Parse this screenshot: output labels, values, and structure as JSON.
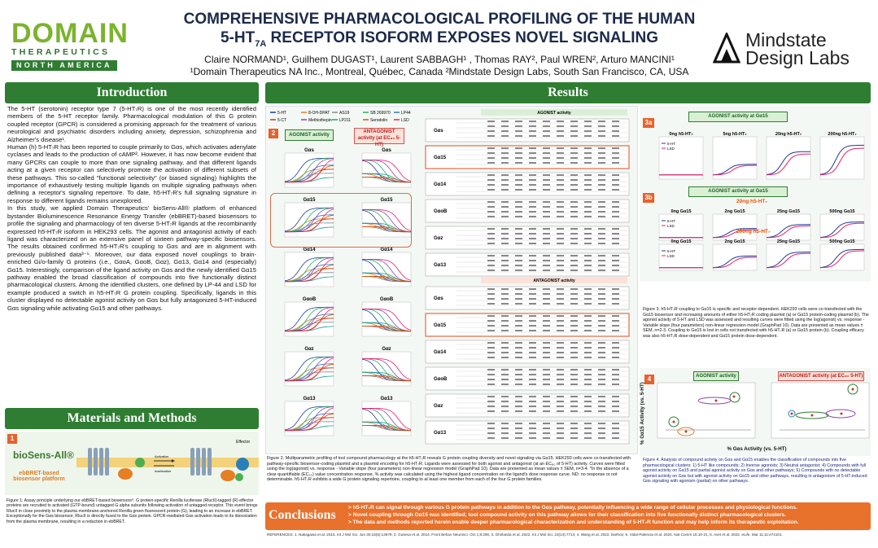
{
  "header": {
    "title_line1": "COMPREHENSIVE PHARMACOLOGICAL PROFILING OF THE HUMAN",
    "title_line2_pre": "5-HT",
    "title_line2_sub": "7A",
    "title_line2_post": " RECEPTOR ISOFORM EXPOSES NOVEL SIGNALING",
    "authors": "Claire NORMAND¹, Guilhem DUGAST¹, Laurent SABBAGH¹ , Thomas RAY², Paul WREN², Arturo MANCINI¹",
    "affiliations": "¹Domain Therapeutics NA Inc., Montreal, Québec, Canada   ²Mindstate Design Labs, South San Francisco, CA, USA",
    "logo_left_word": "DOMAIN",
    "logo_left_sub": "THERAPEUTICS",
    "logo_left_region": "NORTH AMERICA",
    "logo_right_line1": "Mindstate",
    "logo_right_line2": "Design Labs"
  },
  "introduction": {
    "heading": "Introduction",
    "p1": "The 5-HT (serotonin) receptor type 7 (5-HT₇R) is one of the most recently identified members of the 5-HT receptor family. Pharmacological modulation of this G protein coupled receptor (GPCR) is considered a promising approach for the treatment of various neurological and psychiatric disorders including anxiety, depression, schizophrenia and Alzheimer's disease¹.",
    "p2": "Human (h) 5-HT₇R has been reported to couple primarily to Gαs, which activates adenylate cyclases and leads to the production of cAMP². However, it has now become evident that many GPCRs can couple to more than one signaling pathway, and that different ligands acting at a given receptor can selectively promote the activation of different subsets of these pathways. This so-called \"functional selectivity\" (or biased signaling) highlights the importance of exhaustively testing multiple ligands on multiple signaling pathways when defining a receptor's signaling repertoire. To date, h5-HT₇R's full signaling signature in response to different ligands remains unexplored.",
    "p3": "In this study, we applied Domain Therapeutics' bioSens-All® platform of enhanced bystander Bioluminescence Resonance Energy Transfer (ebBRET)-based biosensors to profile the signaling and pharmacology of ten diverse 5-HT₇R ligands at the recombinantly expressed h5-HT₇R isoform in HEK293 cells. The agonist and antagonist activity of each ligand was characterized on an extensive panel of sixteen pathway-specific biosensors. The results obtained confirmed h5-HT₇R's coupling to Gαs and are in alignment with previously published data³⁻⁵. Moreover, our data exposed novel couplings to brain-enriched Gi/o-family G proteins (i.e., GαoA, GαoB, Gαz), Gα13, Gα14 and (especially) Gα15. Interestingly, comparison of the ligand activity on Gαs and the newly identified Gα15 pathway enabled the broad classification of compounds into five functionally distinct pharmacological clusters. Among the identified clusters, one defined by LP-44 and LSD for example produced a switch in h5-HT₇R G protein coupling. Specifically, ligands in this cluster displayed no detectable agonist activity on Gαs but fully antagonized 5-HT-induced Gαs signaling while activating Gα15 and other pathways."
  },
  "methods": {
    "heading": "Materials and Methods",
    "fig_number": "1",
    "platform_name": "bioSens-All®",
    "platform_sub": "ebBRET-based biosensor platform",
    "activation": "Activation",
    "inactivation": "Inactivation",
    "effector": "Effector",
    "caption": "Figure 1: Assay principle underlying our ebBRET-based biosensors⁶. G protein-specific Renilla luciferase (RlucII)-tagged (R) effector proteins are recruited to activated (GTP-bound) untagged G alpha subunits following activation of untagged receptor. This event brings RlucII in close proximity to the plasma membrane-anchored Renilla green fluorescent protein (G), leading to an increase in ebBRET. Exceptionally for the Gαs biosensor, RlucII is directly fused to the Gαs protein. GPCR-mediated Gαs activation leads to its dissociation from the plasma membrane, resulting in a reduction in ebBRET."
  },
  "results": {
    "heading": "Results",
    "fig2": {
      "number": "2",
      "legend": [
        "5-HT",
        "8-OH-DPAT",
        "AS19",
        "SB 269970",
        "LP44",
        "5-CT",
        "Methiothepin",
        "LP211",
        "Serodolin",
        "LSD"
      ],
      "legend_colors": [
        "#1f3a93",
        "#e67e22",
        "#7f8c8d",
        "#27ae60",
        "#2980b9",
        "#c0392b",
        "#8e44ad",
        "#16a085",
        "#d35400",
        "#e91e63"
      ],
      "agonist_label": "AGONIST activity",
      "antagonist_label": "ANTAGONIST activity (at EC₈₀ 5-HT)",
      "pathways": [
        "Gαs",
        "Gα15",
        "Gα14",
        "GαoB",
        "Gαz",
        "Gα13"
      ],
      "agonist_table_title": "AGONIST activity",
      "antagonist_table_title": "ANTAGONIST activity",
      "caption": "Figure 2. Multiparametric profiling of tool compound pharmacology at the h5-HT₇R reveals G protein coupling diversity and novel signaling via Gα15. HEK293 cells were co-transfected with pathway-specific biosensor-coding plasmid and a plasmid encoding for h5-HT₇R. Ligands were assessed for both agonist and antagonist (at an EC₈₀ of 5-HT) activity. Curves were fitted using the log(agonist) vs. response - Variable slope (four parameters) non-linear regression model (GraphPad 10). Data are presented as mean values ± SEM, n=3-4. *In the absence of a clear quantifiable (EC₅₀) value concentration response, % activity was calculated using the highest ligand concentration on the ligand's dose response curve. ND: no response or not determinable. h5-HT₇R exhibits a wide G protein signaling repertoire, coupling to at least one member from each of the four G protein families."
    },
    "fig3": {
      "number_a": "3a",
      "number_b": "3b",
      "title_a": "AGONIST activity at Gα15",
      "title_b": "AGONIST activity at Gα15",
      "receptor_a": [
        "0ng h5-HT₇",
        "5ng h5-HT₇",
        "20ng h5-HT₇",
        "200ng h5-HT₇"
      ],
      "sub_20": "20ng h5-HT₇",
      "sub_200": "200ng h5-HT₇",
      "receptor_b": [
        "0ng Gα15",
        "2ng Gα15",
        "25ng Gα15",
        "500ng Gα15"
      ],
      "legend": [
        "5-HT",
        "LSD"
      ],
      "caption": "Figure 3. h5-HT₇R coupling to Gα15 is specific and receptor-dependent. HEK293 cells were co-transfected with the Gα15 biosensor and increasing amounts of either h5-HT₇R coding plasmid (a) or Gα15 protein-coding plasmid (b). The agonist activity of 5-HT and LSD was assessed and resulting curves were fitted using the log(agonist) vs. response - Variable slope (four parameters) non-linear regression model (GraphPad 10). Data are presented as mean values ± SEM, n=2-3. Coupling to Gα15 is lost in cells not transfected with h5-HT₇R (a) or Gα15 protein (b). Coupling efficacy was also h5-HT₇R dose-dependent and Gα15 protein dose-dependent."
    },
    "fig4": {
      "number": "4",
      "agonist_label": "AGONIST activity",
      "antagonist_label": "ANTAGONIST activity (at EC₈₀ 5-HT)",
      "ylabel": "% Gα15 Activity (vs. 5-HT)",
      "xlabel": "% Gαs Activity (vs. 5-HT)",
      "caption": "Figure 4. Analysis of compound activity on Gαs and Gα15 enables the classification of compounds into five pharmacological clusters: 1) 5-HT like compounds; 2) Inverse agonists; 3) Neutral antagonist; 4) Compounds with full agonist activity on Gα15 and partial agonist activity on Gαs and other pathways; 5) Compounds with no detectable agonist activity on Gαs but with agonist activity on Gα15 and other pathways, resulting in antagonism of 5-HT-induced Gαs signaling with agonism (partial) on other pathways."
    }
  },
  "conclusions": {
    "heading": "Conclusions",
    "items": [
      "> h5-HT₇R can signal through various G protein pathways in addition to the Gαs pathway, potentially influencing a wide range of cellular processes and physiological functions.",
      "> Novel coupling through Gα15 was identified; tool compound activity on this pathway allows for their classification into five functionally distinct pharmacological clusters.",
      "> The data and methods reported herein enable deeper pharmacological characterization and understanding of 5-HT₇R function and may help inform its therapeutic exploitation."
    ]
  },
  "references": "REFERENCES: 1. Nakagawa et al. 2015. Int J Mol Sci. Jun 30;16(6):14979; 2. Guseva et al. 2014. Front Behav Neurosci. Oct 1;8:306; 3. Ghirlanda et al. 2022. Int J Mol Sci. 23(14):7714; 4. Wang et al. 2022. bioRxiv; 5. Vidal-Palencia et al. 2024. Nat Comm 15:10-21; 6. Avet et al. 2022. eLife. Mar 11;11:e74101."
}
